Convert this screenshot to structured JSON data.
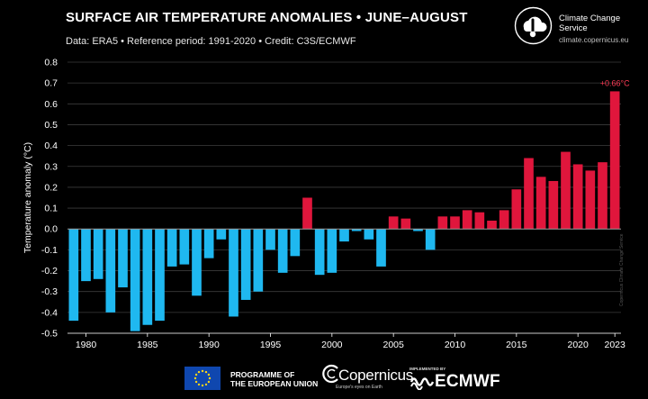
{
  "header": {
    "title": "SURFACE AIR TEMPERATURE ANOMALIES • JUNE–AUGUST",
    "subtitle": "Data: ERA5 • Reference period: 1991-2020 • Credit: C3S/ECMWF",
    "brand_name": "Climate Change Service",
    "brand_url": "climate.copernicus.eu"
  },
  "colors": {
    "negative": "#1fb8f0",
    "positive": "#e0163c",
    "gridline": "#3c3c3c",
    "zeroline": "#9a9a9a",
    "label": "#ffffff",
    "annotation": "#ff3b55"
  },
  "chart_data": {
    "type": "bar",
    "title": "SURFACE AIR TEMPERATURE ANOMALIES • JUNE–AUGUST",
    "xlabel": "",
    "ylabel": "Temperature anomaly (°C)",
    "ylim": [
      -0.5,
      0.8
    ],
    "yticks": [
      "0.8",
      "0.7",
      "0.6",
      "0.5",
      "0.4",
      "0.3",
      "0.2",
      "0.1",
      "0.0",
      "-0.1",
      "-0.2",
      "-0.3",
      "-0.4",
      "-0.5"
    ],
    "xticks": [
      "1980",
      "1985",
      "1990",
      "1995",
      "2000",
      "2005",
      "2010",
      "2015",
      "2020",
      "2023"
    ],
    "x": [
      1979,
      1980,
      1981,
      1982,
      1983,
      1984,
      1985,
      1986,
      1987,
      1988,
      1989,
      1990,
      1991,
      1992,
      1993,
      1994,
      1995,
      1996,
      1997,
      1998,
      1999,
      2000,
      2001,
      2002,
      2003,
      2004,
      2005,
      2006,
      2007,
      2008,
      2009,
      2010,
      2011,
      2012,
      2013,
      2014,
      2015,
      2016,
      2017,
      2018,
      2019,
      2020,
      2021,
      2022,
      2023
    ],
    "values": [
      -0.44,
      -0.25,
      -0.24,
      -0.4,
      -0.28,
      -0.49,
      -0.46,
      -0.44,
      -0.18,
      -0.17,
      -0.32,
      -0.14,
      -0.05,
      -0.42,
      -0.34,
      -0.3,
      -0.1,
      -0.21,
      -0.13,
      0.15,
      -0.22,
      -0.21,
      -0.06,
      -0.01,
      -0.05,
      -0.18,
      0.06,
      0.05,
      -0.01,
      -0.1,
      0.06,
      0.06,
      0.09,
      0.08,
      0.04,
      0.09,
      0.19,
      0.34,
      0.25,
      0.23,
      0.37,
      0.31,
      0.28,
      0.32,
      0.66
    ],
    "annotation": {
      "year": 2023,
      "text": "+0.66°C"
    },
    "grid": "horizontal"
  },
  "footer": {
    "eu_text": "PROGRAMME OF\nTHE EUROPEAN UNION",
    "copernicus_word": "Copernicus",
    "copernicus_tag": "Europe's eyes on Earth",
    "implemented_by": "IMPLEMENTED BY",
    "ecmwf_word": "ECMWF"
  },
  "watermark": "Copernicus Climate Change Service"
}
